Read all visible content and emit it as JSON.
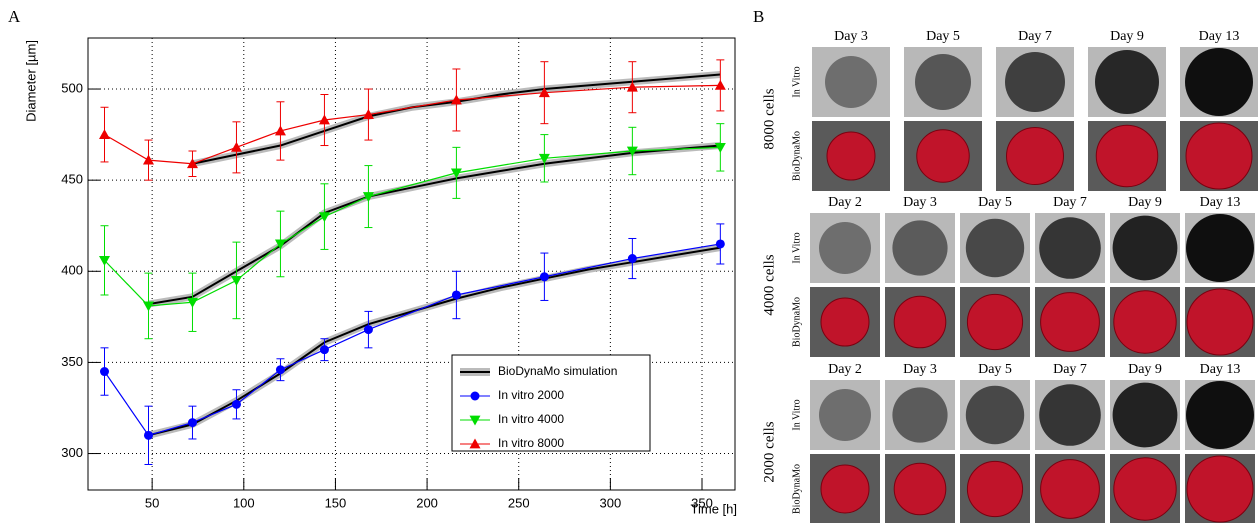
{
  "chart_data": {
    "type": "line",
    "panel_label": "A",
    "x_label": "Time [h]",
    "y_label": "Diameter [µm]",
    "xlim": [
      15,
      368
    ],
    "ylim": [
      280,
      528
    ],
    "xticks": [
      50,
      100,
      150,
      200,
      250,
      300,
      350
    ],
    "yticks": [
      300,
      350,
      400,
      450,
      500
    ],
    "grid": true,
    "legend": "lower right",
    "simulation": {
      "name": "BioDynaMo simulation",
      "color": "#000000",
      "band_color": "#bbbbbb",
      "curves": [
        {
          "x": [
            48,
            72,
            96,
            120,
            144,
            168,
            192,
            216,
            240,
            264,
            288,
            312,
            336,
            360
          ],
          "values": [
            310,
            316,
            329,
            344,
            361,
            371,
            378,
            385,
            391,
            396,
            401,
            405,
            409,
            413
          ]
        },
        {
          "x": [
            48,
            72,
            96,
            120,
            144,
            168,
            192,
            216,
            240,
            264,
            288,
            312,
            336,
            360
          ],
          "values": [
            382,
            386,
            400,
            414,
            432,
            441,
            446,
            451,
            455,
            459,
            462,
            465,
            467,
            469
          ]
        },
        {
          "x": [
            72,
            96,
            120,
            144,
            168,
            192,
            216,
            240,
            264,
            288,
            312,
            336,
            360
          ],
          "values": [
            459,
            464,
            469,
            477,
            485,
            490,
            493,
            497,
            500,
            502,
            504,
            506,
            508
          ]
        }
      ]
    },
    "x": [
      24,
      48,
      72,
      96,
      120,
      144,
      168,
      216,
      264,
      312,
      360
    ],
    "series": [
      {
        "name": "In vitro 2000",
        "color": "#0000ff",
        "marker": "circle",
        "values": [
          345,
          310,
          317,
          327,
          346,
          357,
          368,
          387,
          397,
          407,
          415
        ],
        "errors": [
          13,
          16,
          9,
          8,
          6,
          6,
          10,
          13,
          13,
          11,
          11
        ]
      },
      {
        "name": "In vitro 4000",
        "color": "#00dd00",
        "marker": "triangle-down",
        "values": [
          406,
          381,
          383,
          395,
          415,
          430,
          441,
          454,
          462,
          466,
          468
        ],
        "errors": [
          19,
          18,
          16,
          21,
          18,
          18,
          17,
          14,
          13,
          13,
          13
        ]
      },
      {
        "name": "In vitro 8000",
        "color": "#ee0000",
        "marker": "triangle-up",
        "values": [
          475,
          461,
          459,
          468,
          477,
          483,
          486,
          494,
          498,
          501,
          502
        ],
        "errors": [
          15,
          11,
          7,
          14,
          16,
          14,
          14,
          17,
          17,
          14,
          14
        ]
      }
    ]
  },
  "panel_b": {
    "label": "B",
    "groups": [
      {
        "label": "8000 cells",
        "row_labels": [
          "In Vitro",
          "BioDynaMo"
        ],
        "days": [
          "Day 3",
          "Day 5",
          "Day 7",
          "Day 9",
          "Day 13"
        ]
      },
      {
        "label": "4000 cells",
        "row_labels": [
          "In Vitro",
          "BioDynaMo"
        ],
        "days": [
          "Day 2",
          "Day 3",
          "Day 5",
          "Day 7",
          "Day 9",
          "Day 13"
        ]
      },
      {
        "label": "2000 cells",
        "row_labels": [
          "In Vitro",
          "BioDynaMo"
        ],
        "days": [
          "Day 2",
          "Day 3",
          "Day 5",
          "Day 7",
          "Day 9",
          "Day 13"
        ]
      }
    ]
  }
}
